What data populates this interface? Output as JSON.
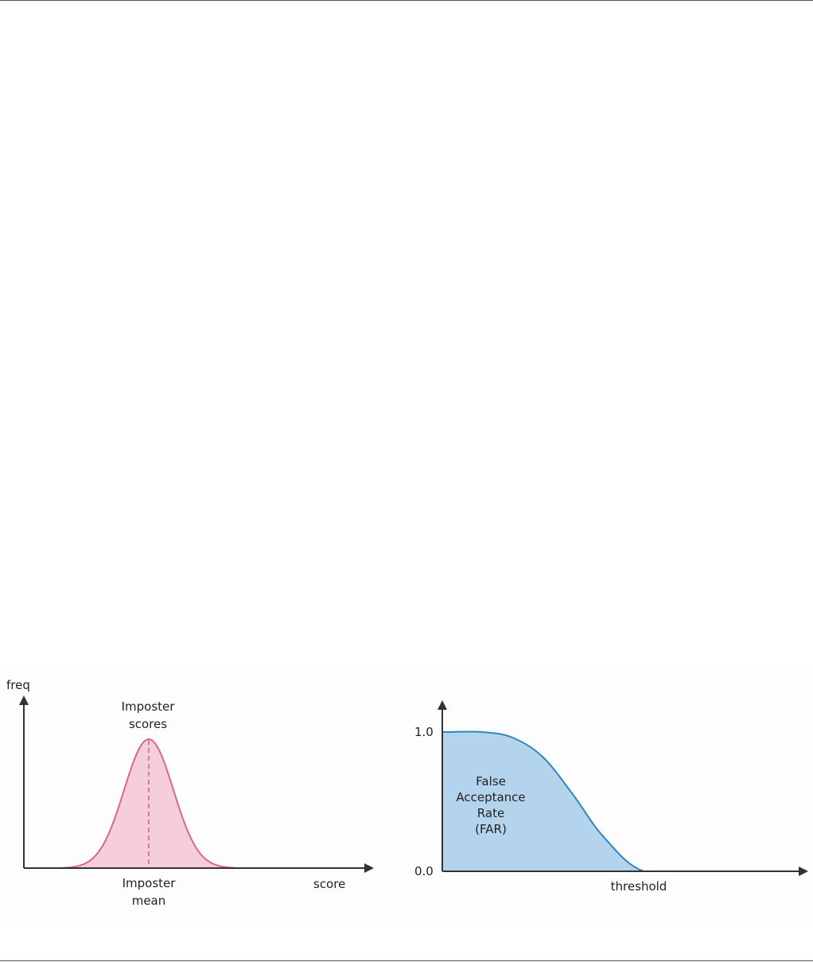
{
  "chart_data": [
    {
      "type": "area",
      "ylabel": "freq",
      "xlabel": "score",
      "series": [
        {
          "name": "Imposter scores",
          "color": "#d9668f",
          "fill": "#f5cddb"
        }
      ],
      "distribution": "normal",
      "annotations": {
        "curve_label_line1": "Imposter",
        "curve_label_line2": "scores",
        "mean_label_line1": "Imposter",
        "mean_label_line2": "mean",
        "mean_label_color": "#e89aa9"
      },
      "grid": false,
      "legend": "none"
    },
    {
      "type": "area",
      "xlabel": "threshold",
      "ylabel": "",
      "yticks": [
        "1.0",
        "0.0"
      ],
      "ylim": [
        0.0,
        1.0
      ],
      "x": [
        0,
        0.2,
        0.35,
        0.5,
        0.65,
        0.8,
        1.0,
        1.3,
        1.8
      ],
      "y": [
        1.0,
        1.0,
        0.96,
        0.82,
        0.55,
        0.25,
        0.0,
        0.0,
        0.0
      ],
      "series": [
        {
          "name": "False Acceptance Rate (FAR)",
          "color": "#2e86c1",
          "fill": "#b3d4ec"
        }
      ],
      "annotations": {
        "area_label_line1": "False",
        "area_label_line2": "Acceptance",
        "area_label_line3": "Rate",
        "area_label_line4": "(FAR)"
      },
      "grid": false,
      "legend": "none"
    }
  ]
}
